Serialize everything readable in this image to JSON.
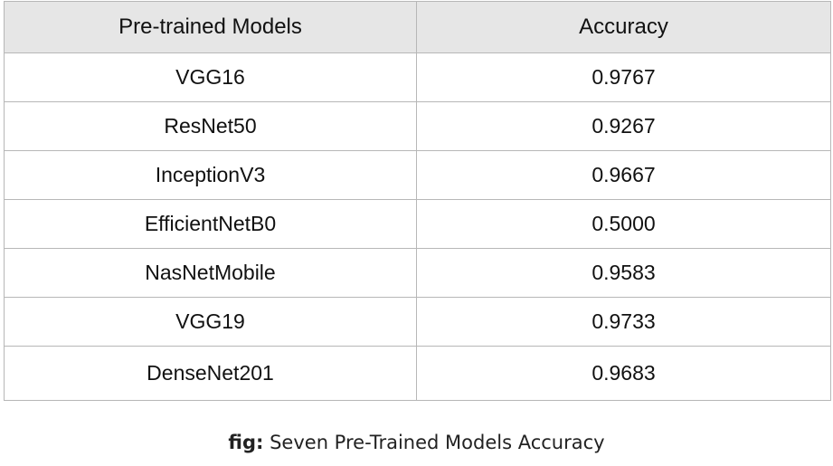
{
  "table": {
    "headers": {
      "model": "Pre-trained Models",
      "accuracy": "Accuracy"
    },
    "rows": [
      {
        "model": "VGG16",
        "accuracy": "0.9767",
        "best": true
      },
      {
        "model": "ResNet50",
        "accuracy": "0.9267",
        "best": false
      },
      {
        "model": "InceptionV3",
        "accuracy": "0.9667",
        "best": false
      },
      {
        "model": "EfficientNetB0",
        "accuracy": "0.5000",
        "best": false
      },
      {
        "model": "NasNetMobile",
        "accuracy": "0.9583",
        "best": false
      },
      {
        "model": "VGG19",
        "accuracy": "0.9733",
        "best": false
      },
      {
        "model": "DenseNet201",
        "accuracy": "0.9683",
        "best": false
      }
    ]
  },
  "caption": {
    "label": "fig:",
    "text": "Seven Pre-Trained Models Accuracy"
  }
}
